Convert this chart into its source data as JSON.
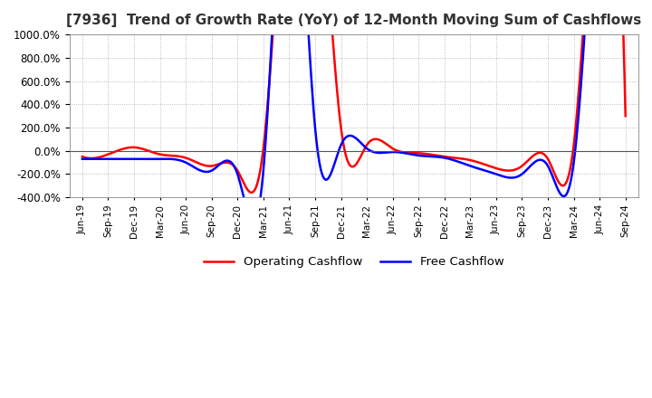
{
  "title": "[7936]  Trend of Growth Rate (YoY) of 12-Month Moving Sum of Cashflows",
  "ylim": [
    -400,
    1000
  ],
  "yticks": [
    -400,
    -200,
    0,
    200,
    400,
    600,
    800,
    1000
  ],
  "legend_labels": [
    "Operating Cashflow",
    "Free Cashflow"
  ],
  "legend_colors": [
    "red",
    "blue"
  ],
  "operating_cashflow": [
    -50,
    -30,
    30,
    -30,
    -60,
    -130,
    -170,
    20,
    3000,
    3000,
    200,
    50,
    20,
    -20,
    -50,
    -80,
    -150,
    -130,
    -70,
    50,
    3000,
    300
  ],
  "free_cashflow": [
    -70,
    -70,
    -70,
    -70,
    -100,
    -170,
    -200,
    -170,
    3000,
    200,
    50,
    20,
    -10,
    -40,
    -60,
    -130,
    -200,
    -200,
    -130,
    -100,
    3000,
    3000
  ],
  "xtick_labels": [
    "Jun-19",
    "Sep-19",
    "Dec-19",
    "Mar-20",
    "Jun-20",
    "Sep-20",
    "Dec-20",
    "Mar-21",
    "Jun-21",
    "Sep-21",
    "Dec-21",
    "Mar-22",
    "Jun-22",
    "Sep-22",
    "Dec-22",
    "Mar-23",
    "Jun-23",
    "Sep-23",
    "Dec-23",
    "Mar-24",
    "Jun-24",
    "Sep-24"
  ],
  "background_color": "#ffffff",
  "grid_color": "#aaaaaa",
  "title_color": "#333333",
  "title_fontsize": 11
}
